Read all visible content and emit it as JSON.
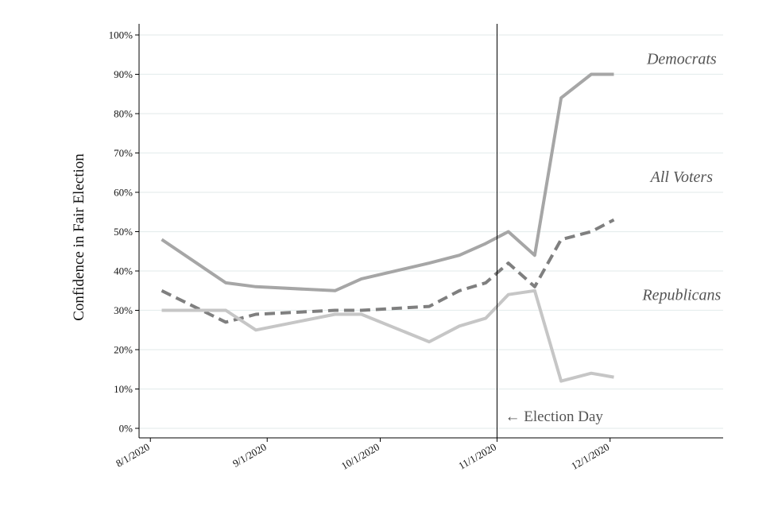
{
  "chart_data": {
    "type": "line",
    "title": "",
    "xlabel": "",
    "ylabel": "Confidence in Fair Election",
    "ylim": [
      0,
      100
    ],
    "xlim": [
      "2020-07-29",
      "2020-12-31"
    ],
    "y_ticks": [
      0,
      10,
      20,
      30,
      40,
      50,
      60,
      70,
      80,
      90,
      100
    ],
    "y_tick_labels": [
      "0%",
      "10%",
      "20%",
      "30%",
      "40%",
      "50%",
      "60%",
      "70%",
      "80%",
      "90%",
      "100%"
    ],
    "x_ticks": [
      "2020-08-01",
      "2020-09-01",
      "2020-10-01",
      "2020-11-01",
      "2020-12-01"
    ],
    "x_tick_labels": [
      "8/1/2020",
      "9/1/2020",
      "10/1/2020",
      "11/1/2020",
      "12/1/2020"
    ],
    "grid": "horizontal",
    "annotations": [
      {
        "text": "← Election Day",
        "x": "2020-11-01",
        "y": 3
      }
    ],
    "series": [
      {
        "name": "Democrats",
        "color": "#a6a6a6",
        "style": "solid",
        "points": [
          [
            "2020-08-04",
            48
          ],
          [
            "2020-08-21",
            37
          ],
          [
            "2020-08-29",
            36
          ],
          [
            "2020-09-19",
            35
          ],
          [
            "2020-09-26",
            38
          ],
          [
            "2020-10-14",
            42
          ],
          [
            "2020-10-22",
            44
          ],
          [
            "2020-10-29",
            47
          ],
          [
            "2020-11-04",
            50
          ],
          [
            "2020-11-11",
            44
          ],
          [
            "2020-11-18",
            84
          ],
          [
            "2020-11-26",
            90
          ],
          [
            "2020-12-02",
            90
          ]
        ],
        "label_at": [
          "2020-12-20",
          94
        ]
      },
      {
        "name": "All Voters",
        "color": "#7f7f7f",
        "style": "dashed",
        "points": [
          [
            "2020-08-04",
            35
          ],
          [
            "2020-08-21",
            27
          ],
          [
            "2020-08-29",
            29
          ],
          [
            "2020-09-19",
            30
          ],
          [
            "2020-09-26",
            30
          ],
          [
            "2020-10-14",
            31
          ],
          [
            "2020-10-22",
            35
          ],
          [
            "2020-10-29",
            37
          ],
          [
            "2020-11-04",
            42
          ],
          [
            "2020-11-11",
            36
          ],
          [
            "2020-11-18",
            48
          ],
          [
            "2020-11-26",
            50
          ],
          [
            "2020-12-02",
            53
          ]
        ],
        "label_at": [
          "2020-12-20",
          64
        ]
      },
      {
        "name": "Republicans",
        "color": "#c6c6c6",
        "style": "solid",
        "points": [
          [
            "2020-08-04",
            30
          ],
          [
            "2020-08-21",
            30
          ],
          [
            "2020-08-29",
            25
          ],
          [
            "2020-09-19",
            29
          ],
          [
            "2020-09-26",
            29
          ],
          [
            "2020-10-14",
            22
          ],
          [
            "2020-10-22",
            26
          ],
          [
            "2020-10-29",
            28
          ],
          [
            "2020-11-04",
            34
          ],
          [
            "2020-11-11",
            35
          ],
          [
            "2020-11-18",
            12
          ],
          [
            "2020-11-26",
            14
          ],
          [
            "2020-12-02",
            13
          ]
        ],
        "label_at": [
          "2020-12-20",
          34
        ]
      }
    ]
  }
}
